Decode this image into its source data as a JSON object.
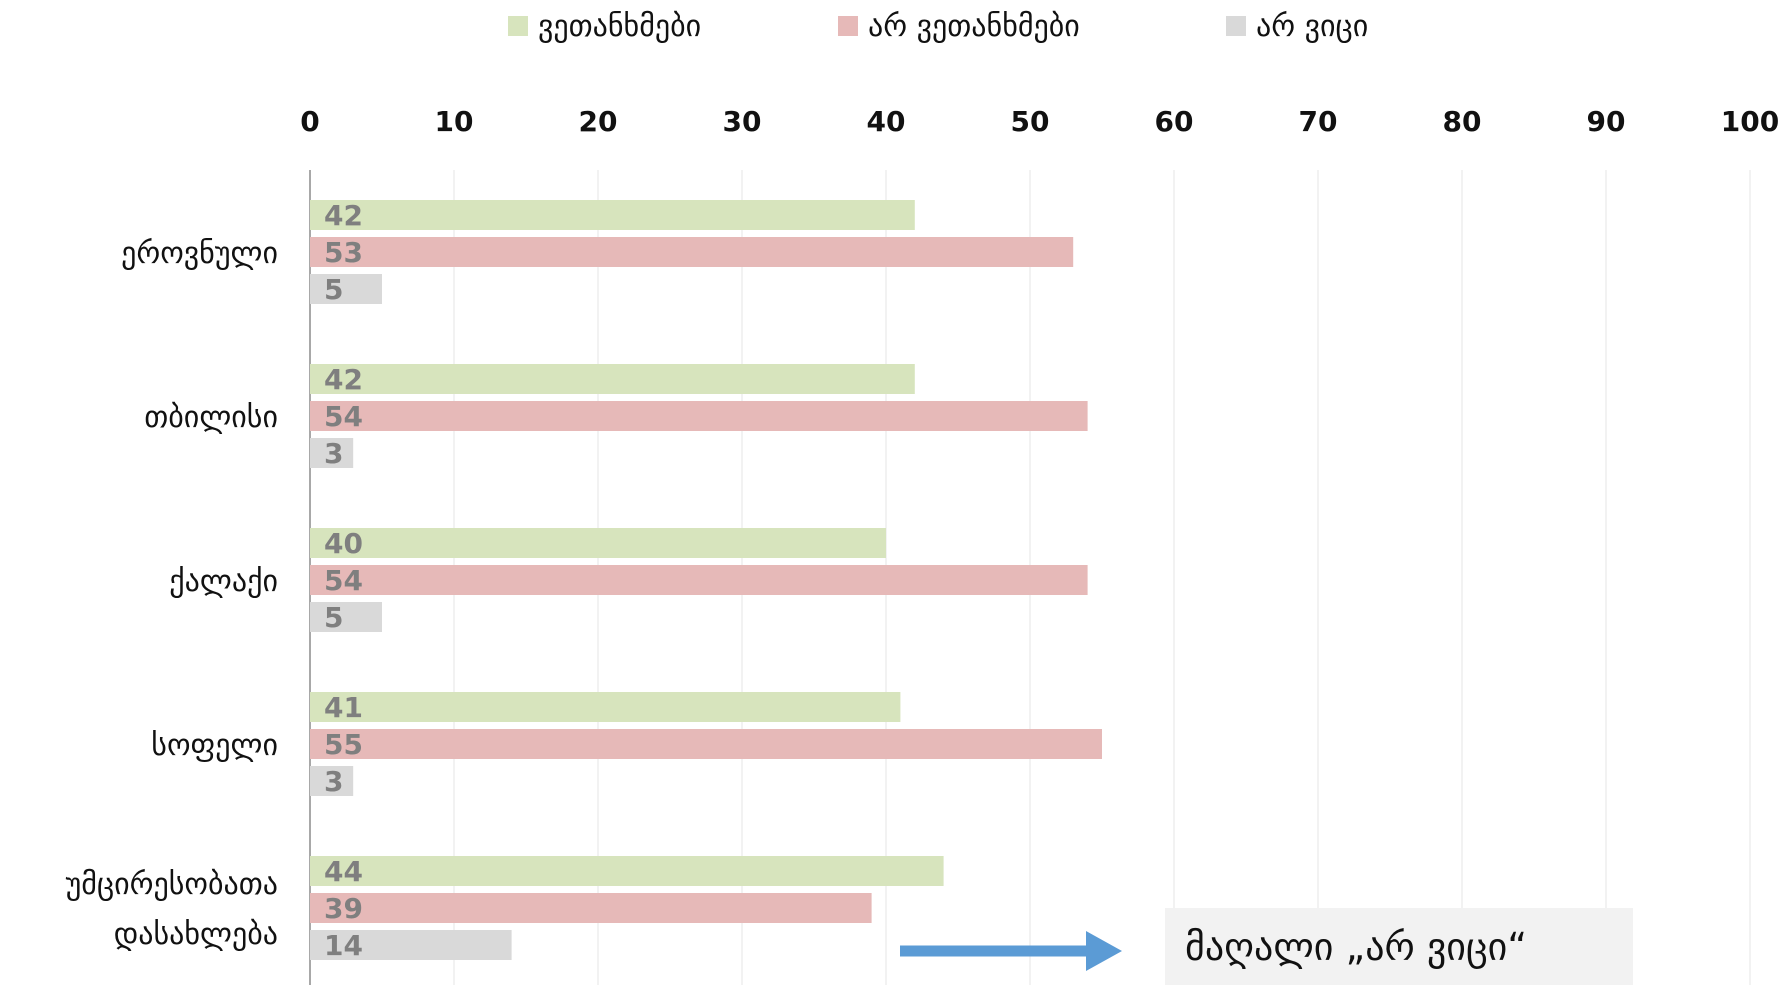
{
  "chart_data": {
    "type": "bar",
    "orientation": "horizontal",
    "categories": [
      "ეროვნული",
      "თბილისი",
      "ქალაქი",
      "სოფელი",
      "უმცირესობათა დასახლება"
    ],
    "category_lines": [
      [
        "ეროვნული"
      ],
      [
        "თბილისი"
      ],
      [
        "ქალაქი"
      ],
      [
        "სოფელი"
      ],
      [
        "უმცირესობათა",
        "დასახლება"
      ]
    ],
    "series": [
      {
        "name": "ვეთანხმები",
        "color": "#d7e4bd",
        "values": [
          42,
          42,
          40,
          41,
          44
        ],
        "labels": [
          "42",
          "42",
          "40",
          "41",
          "44"
        ]
      },
      {
        "name": "არ ვეთანხმები",
        "color": "#e6b9b8",
        "values": [
          53,
          54,
          54,
          55,
          39
        ],
        "labels": [
          "53",
          "54",
          "54",
          "55",
          "39"
        ]
      },
      {
        "name": "არ ვიცი",
        "color": "#d9d9d9",
        "values": [
          5,
          3,
          5,
          3,
          14
        ],
        "labels": [
          "5",
          "3",
          "5",
          "3",
          "14"
        ]
      }
    ],
    "xlim": [
      0,
      100
    ],
    "xticks": [
      0,
      10,
      20,
      30,
      40,
      50,
      60,
      70,
      80,
      90,
      100
    ],
    "xtick_labels": [
      "0",
      "10",
      "20",
      "30",
      "40",
      "50",
      "60",
      "70",
      "80",
      "90",
      "100"
    ],
    "x_axis_position": "top",
    "legend_position": "top",
    "grid": true,
    "grid_color": "#eeeeee",
    "annotation": {
      "text": "მაღალი „არ ვიცი“",
      "arrow_color": "#5b9bd5",
      "box_color": "#f2f2f2"
    }
  }
}
